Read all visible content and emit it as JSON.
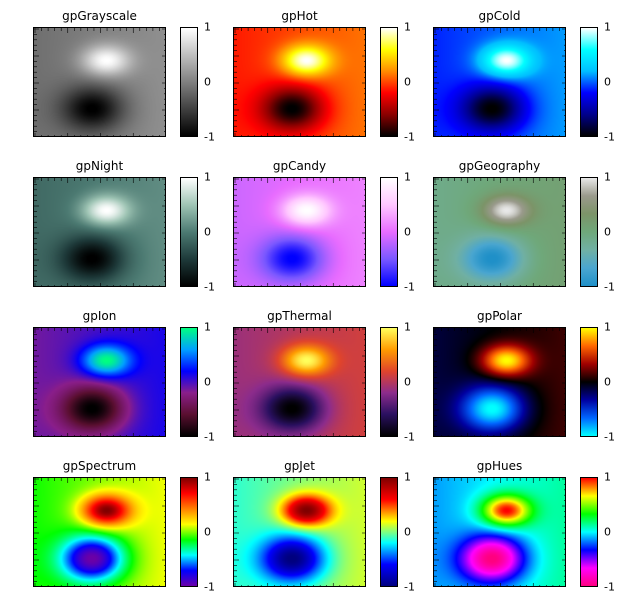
{
  "figure": {
    "panels": [
      {
        "title": "gpGrayscale",
        "cmap": "grayscale"
      },
      {
        "title": "gpHot",
        "cmap": "hot"
      },
      {
        "title": "gpCold",
        "cmap": "cold"
      },
      {
        "title": "gpNight",
        "cmap": "night"
      },
      {
        "title": "gpCandy",
        "cmap": "candy"
      },
      {
        "title": "gpGeography",
        "cmap": "geography"
      },
      {
        "title": "gpIon",
        "cmap": "ion"
      },
      {
        "title": "gpThermal",
        "cmap": "thermal"
      },
      {
        "title": "gpPolar",
        "cmap": "polar"
      },
      {
        "title": "gpSpectrum",
        "cmap": "spectrum"
      },
      {
        "title": "gpJet",
        "cmap": "jet"
      },
      {
        "title": "gpHues",
        "cmap": "hues"
      }
    ]
  },
  "chart_data": {
    "type": "heatmap",
    "colorbar_ticks": [
      "1",
      "0",
      "-1"
    ],
    "value_range": [
      -1,
      1
    ],
    "field": {
      "description_terms": [
        {
          "amplitude": 1.0,
          "center": [
            0.55,
            0.3
          ],
          "sigma": [
            0.13,
            0.1
          ]
        },
        {
          "amplitude": -1.0,
          "center": [
            0.45,
            0.75
          ],
          "sigma": [
            0.17,
            0.15
          ]
        }
      ],
      "gradient_x": 0.25
    },
    "colormaps": {
      "grayscale": [
        "#000000",
        "#ffffff"
      ],
      "hot": [
        "#000000",
        "#8b0000",
        "#ff0000",
        "#ff8c00",
        "#ffff00",
        "#ffffff"
      ],
      "cold": [
        "#000000",
        "#00008b",
        "#0000ff",
        "#00bfff",
        "#00ffff",
        "#ffffff"
      ],
      "night": [
        "#000000",
        "#1e3a3a",
        "#4c7a72",
        "#9ec4b4",
        "#ffffff"
      ],
      "candy": [
        "#0000ff",
        "#7a58ff",
        "#e86cff",
        "#ffc6ff",
        "#ffffff"
      ],
      "geography": [
        "#1f90c8",
        "#4aa6d0",
        "#70b0a4",
        "#6fa87a",
        "#7c9468",
        "#9a9a8c",
        "#e8e8e8"
      ],
      "ion": [
        "#000000",
        "#5a0f30",
        "#8a1e8a",
        "#0000ff",
        "#00a0ff",
        "#00ff80"
      ],
      "thermal": [
        "#000000",
        "#2a1060",
        "#8c2c8c",
        "#e0442c",
        "#ff9c00",
        "#ffff5c"
      ],
      "polar": [
        "#00ffff",
        "#0066ff",
        "#0000a0",
        "#000000",
        "#a00000",
        "#ff6600",
        "#ffff00"
      ],
      "spectrum": [
        "#6a00a8",
        "#0000ff",
        "#00ffff",
        "#00ff00",
        "#ffff00",
        "#ff8000",
        "#ff0000",
        "#800000"
      ],
      "jet": [
        "#00007f",
        "#0000ff",
        "#00ffff",
        "#ffff00",
        "#ff0000",
        "#7f0000"
      ],
      "hues": [
        "#ff0080",
        "#ff00ff",
        "#0000ff",
        "#00ffff",
        "#00ff00",
        "#ffff00",
        "#ff0000"
      ]
    }
  }
}
